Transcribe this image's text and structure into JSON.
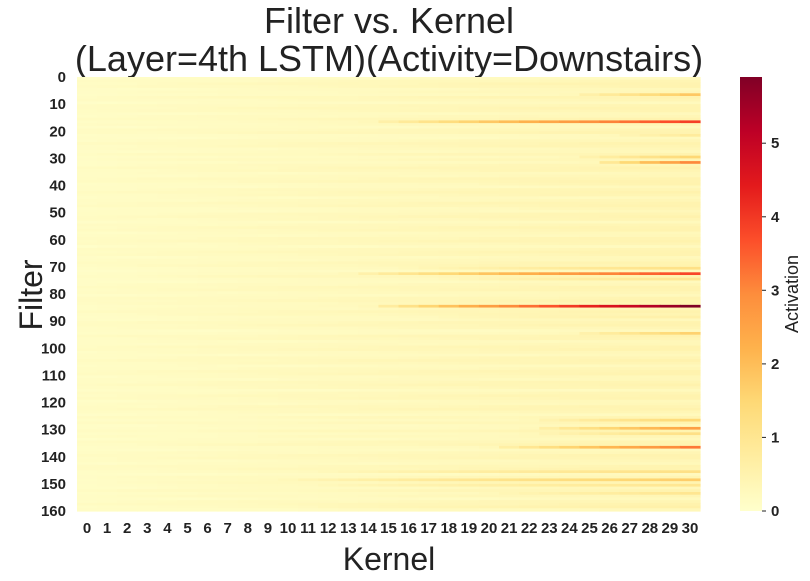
{
  "chart_data": {
    "type": "heatmap",
    "title_lines": [
      "Filter vs. Kernel",
      "(Layer=4th LSTM)(Activity=Downstairs)"
    ],
    "xlabel": "Kernel",
    "ylabel": "Filter",
    "colorbar_label": "Activation",
    "x_ticks": [
      "0",
      "1",
      "2",
      "3",
      "4",
      "5",
      "6",
      "7",
      "8",
      "9",
      "10",
      "11",
      "12",
      "13",
      "14",
      "15",
      "16",
      "17",
      "18",
      "19",
      "20",
      "21",
      "22",
      "23",
      "24",
      "25",
      "26",
      "27",
      "28",
      "29",
      "30"
    ],
    "y_ticks": [
      "0",
      "10",
      "20",
      "30",
      "40",
      "50",
      "60",
      "70",
      "80",
      "90",
      "100",
      "110",
      "120",
      "130",
      "140",
      "150",
      "160"
    ],
    "colorbar_ticks": [
      "0",
      "1",
      "2",
      "3",
      "4",
      "5"
    ],
    "n_filters": 160,
    "n_kernels": 31,
    "value_range": [
      0,
      5.9
    ],
    "colormap": [
      "#ffffcc",
      "#ffeda0",
      "#fed976",
      "#feb24c",
      "#fd8d3c",
      "#fc4e2a",
      "#e31a1c",
      "#bd0026",
      "#800026"
    ],
    "highlight_rows": [
      {
        "filter": 6,
        "peak": 1.8,
        "start_kernel": 24
      },
      {
        "filter": 16,
        "peak": 3.9,
        "start_kernel": 14
      },
      {
        "filter": 21,
        "peak": 0.8,
        "start_kernel": 26
      },
      {
        "filter": 29,
        "peak": 1.5,
        "start_kernel": 24
      },
      {
        "filter": 31,
        "peak": 3.0,
        "start_kernel": 25
      },
      {
        "filter": 39,
        "peak": 0.5,
        "start_kernel": 20
      },
      {
        "filter": 48,
        "peak": 0.4,
        "start_kernel": 22
      },
      {
        "filter": 70,
        "peak": 1.2,
        "start_kernel": 16
      },
      {
        "filter": 72,
        "peak": 3.8,
        "start_kernel": 13
      },
      {
        "filter": 74,
        "peak": 1.0,
        "start_kernel": 18
      },
      {
        "filter": 84,
        "peak": 5.9,
        "start_kernel": 14
      },
      {
        "filter": 88,
        "peak": 0.6,
        "start_kernel": 18
      },
      {
        "filter": 94,
        "peak": 1.6,
        "start_kernel": 24
      },
      {
        "filter": 126,
        "peak": 1.5,
        "start_kernel": 22
      },
      {
        "filter": 129,
        "peak": 2.6,
        "start_kernel": 22
      },
      {
        "filter": 131,
        "peak": 1.2,
        "start_kernel": 22
      },
      {
        "filter": 136,
        "peak": 3.2,
        "start_kernel": 20
      },
      {
        "filter": 145,
        "peak": 1.2,
        "start_kernel": 12
      },
      {
        "filter": 148,
        "peak": 1.7,
        "start_kernel": 10
      },
      {
        "filter": 150,
        "peak": 1.0,
        "start_kernel": 12
      },
      {
        "filter": 153,
        "peak": 1.0,
        "start_kernel": 20
      },
      {
        "filter": 158,
        "peak": 0.6,
        "start_kernel": 12
      }
    ]
  }
}
